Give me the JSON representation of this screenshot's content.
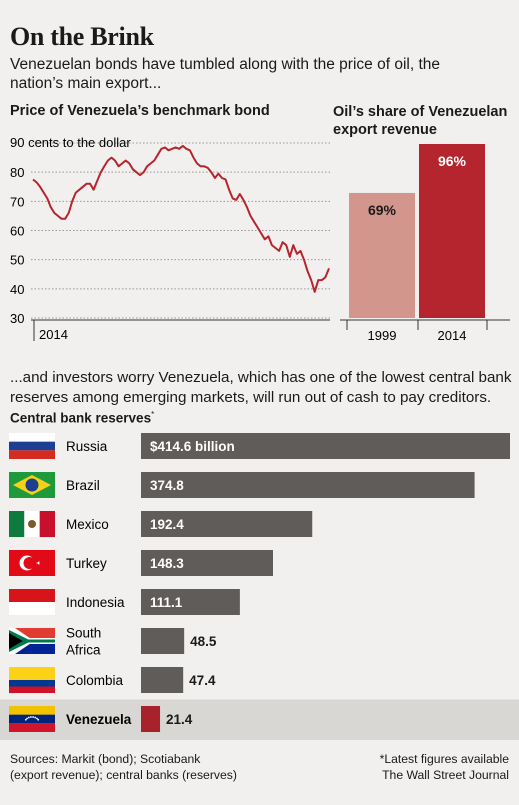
{
  "header": {
    "title": "On the Brink",
    "subtitle": "Venezuelan bonds have tumbled along with the price of oil, the nation’s main export..."
  },
  "bond_chart": {
    "title": "Price of Venezuela’s benchmark bond",
    "unit_label": "90 cents to the dollar",
    "x_label": "2014"
  },
  "oil_chart": {
    "title": "Oil’s share of Venezuelan export revenue"
  },
  "reserves_intro": "...and investors worry Venezuela, which has one of the lowest central bank reserves among emerging markets, will run out of cash to pay creditors.",
  "reserves_title": "Central bank reserves",
  "reserves_title_mark": "*",
  "footer": {
    "sources_line1": "Sources: Markit (bond); Scotiabank",
    "sources_line2": "(export revenue); central banks (reserves)",
    "note_line1": "*Latest figures available",
    "note_line2": "The Wall Street Journal"
  },
  "colors": {
    "line": "#b5252e",
    "bar_1999": "#d2968d",
    "bar_2014": "#b5252e",
    "reserve_bar": "#5f5c59",
    "venezuela_bar": "#a8222c",
    "highlight_row": "#d9d7d4"
  },
  "chart_data": [
    {
      "type": "line",
      "title": "Price of Venezuela’s benchmark bond",
      "ylabel": "90 cents to the dollar",
      "ylim": [
        30,
        90
      ],
      "yticks": [
        90,
        80,
        70,
        60,
        50,
        40,
        30
      ],
      "x_tick_labels": [
        "2014"
      ],
      "grid": true,
      "series": [
        {
          "values": [
            77.5,
            76.5,
            75,
            73,
            71,
            68,
            66,
            65,
            64,
            64,
            66,
            70,
            73,
            74,
            75,
            76,
            76,
            74,
            77,
            80,
            82,
            84,
            85,
            84,
            82,
            83,
            84,
            83,
            81,
            80,
            79,
            80,
            82,
            83,
            84,
            86,
            88,
            88.5,
            87.5,
            88,
            88.5,
            88,
            89,
            88,
            87.5,
            85,
            83,
            82,
            82,
            81.5,
            80,
            78,
            79.5,
            78,
            77.5,
            74,
            71,
            70.5,
            72.5,
            70.5,
            68,
            65,
            63,
            61,
            59,
            57,
            58,
            55,
            54,
            53,
            56,
            55,
            51,
            55,
            52,
            53,
            50,
            46,
            43,
            39,
            43,
            43,
            44,
            47
          ]
        }
      ]
    },
    {
      "type": "bar",
      "title": "Oil’s share of Venezuelan export revenue",
      "categories": [
        "1999",
        "2014"
      ],
      "values": [
        69,
        96
      ],
      "value_labels": [
        "69%",
        "96%"
      ],
      "ylim": [
        0,
        100
      ]
    },
    {
      "type": "bar",
      "orientation": "horizontal",
      "title": "Central bank reserves",
      "categories": [
        "Russia",
        "Brazil",
        "Mexico",
        "Turkey",
        "Indonesia",
        "South Africa",
        "Colombia",
        "Venezuela"
      ],
      "category_lines": [
        [
          "Russia"
        ],
        [
          "Brazil"
        ],
        [
          "Mexico"
        ],
        [
          "Turkey"
        ],
        [
          "Indonesia"
        ],
        [
          "South",
          "Africa"
        ],
        [
          "Colombia"
        ],
        [
          "Venezuela"
        ]
      ],
      "values": [
        414.6,
        374.8,
        192.4,
        148.3,
        111.1,
        48.5,
        47.4,
        21.4
      ],
      "value_labels": [
        "$414.6 billion",
        "374.8",
        "192.4",
        "148.3",
        "111.1",
        "48.5",
        "47.4",
        "21.4"
      ],
      "highlight": "Venezuela",
      "flags": [
        "russia-flag-icon",
        "brazil-flag-icon",
        "mexico-flag-icon",
        "turkey-flag-icon",
        "indonesia-flag-icon",
        "south-africa-flag-icon",
        "colombia-flag-icon",
        "venezuela-flag-icon"
      ]
    }
  ]
}
